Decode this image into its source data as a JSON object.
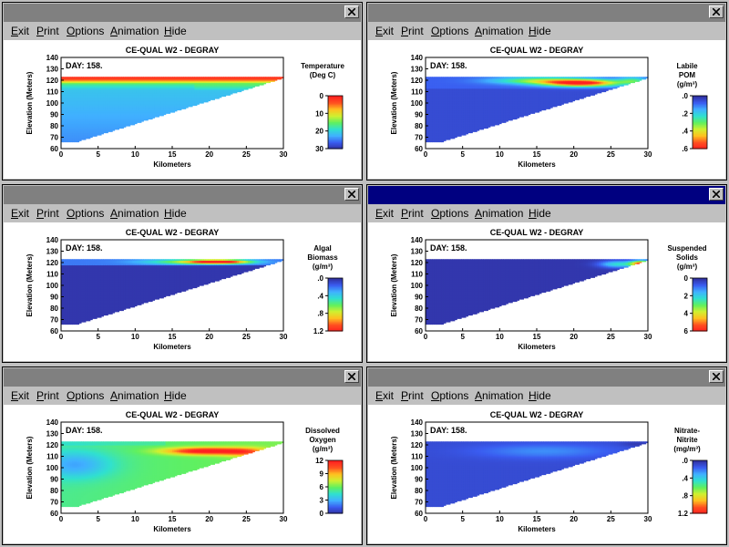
{
  "menu": {
    "exit": "Exit",
    "print": "Print",
    "options": "Options",
    "animation": "Animation",
    "hide": "Hide"
  },
  "colors": {
    "scale": [
      "#3030a0",
      "#3a5cf0",
      "#40b0ff",
      "#30e0d0",
      "#60f060",
      "#d0f030",
      "#ffc020",
      "#ff5020",
      "#ff2020"
    ]
  },
  "chart_data": [
    {
      "type": "heatmap",
      "title": "CE-QUAL W2 - DEGRAY",
      "day_label": "DAY: 158.",
      "xlabel": "Kilometers",
      "ylabel": "Elevation (Meters)",
      "xlim": [
        0,
        30
      ],
      "ylim": [
        60,
        140
      ],
      "x_ticks": [
        "0",
        "5",
        "10",
        "15",
        "20",
        "25",
        "30"
      ],
      "y_ticks": [
        "60",
        "70",
        "80",
        "90",
        "100",
        "110",
        "120",
        "130",
        "140"
      ],
      "legend_title": [
        "Temperature",
        "(Deg C)"
      ],
      "legend_ticks": [
        "0",
        "10",
        "20",
        "30"
      ],
      "legend_range": [
        0,
        30
      ],
      "legend_reversed": true,
      "water_surface": 123,
      "pattern": "temp"
    },
    {
      "type": "heatmap",
      "title": "CE-QUAL W2 - DEGRAY",
      "day_label": "DAY: 158.",
      "xlabel": "Kilometers",
      "ylabel": "Elevation (Meters)",
      "xlim": [
        0,
        30
      ],
      "ylim": [
        60,
        140
      ],
      "x_ticks": [
        "0",
        "5",
        "10",
        "15",
        "20",
        "25",
        "30"
      ],
      "y_ticks": [
        "60",
        "70",
        "80",
        "90",
        "100",
        "110",
        "120",
        "130",
        "140"
      ],
      "legend_title": [
        "Labile",
        "POM",
        "(g/m³)"
      ],
      "legend_ticks": [
        ".0",
        ".2",
        ".4",
        ".6"
      ],
      "legend_range": [
        0,
        0.6
      ],
      "legend_reversed": false,
      "water_surface": 123,
      "pattern": "pom"
    },
    {
      "type": "heatmap",
      "title": "CE-QUAL W2 - DEGRAY",
      "day_label": "DAY: 158.",
      "xlabel": "Kilometers",
      "ylabel": "Elevation (Meters)",
      "xlim": [
        0,
        30
      ],
      "ylim": [
        60,
        140
      ],
      "x_ticks": [
        "0",
        "5",
        "10",
        "15",
        "20",
        "25",
        "30"
      ],
      "y_ticks": [
        "60",
        "70",
        "80",
        "90",
        "100",
        "110",
        "120",
        "130",
        "140"
      ],
      "legend_title": [
        "Algal",
        "Biomass",
        "(g/m³)"
      ],
      "legend_ticks": [
        ".0",
        ".4",
        ".8",
        "1.2"
      ],
      "legend_range": [
        0,
        1.2
      ],
      "legend_reversed": false,
      "water_surface": 123,
      "pattern": "algae"
    },
    {
      "type": "heatmap",
      "title": "CE-QUAL W2 - DEGRAY",
      "day_label": "DAY: 158.",
      "xlabel": "Kilometers",
      "ylabel": "Elevation (Meters)",
      "xlim": [
        0,
        30
      ],
      "ylim": [
        60,
        140
      ],
      "x_ticks": [
        "0",
        "5",
        "10",
        "15",
        "20",
        "25",
        "30"
      ],
      "y_ticks": [
        "60",
        "70",
        "80",
        "90",
        "100",
        "110",
        "120",
        "130",
        "140"
      ],
      "legend_title": [
        "Suspended",
        "Solids",
        "(g/m³)"
      ],
      "legend_ticks": [
        "0",
        "2",
        "4",
        "6"
      ],
      "legend_range": [
        0,
        6
      ],
      "legend_reversed": false,
      "water_surface": 123,
      "pattern": "ss"
    },
    {
      "type": "heatmap",
      "title": "CE-QUAL W2 - DEGRAY",
      "day_label": "DAY: 158.",
      "xlabel": "Kilometers",
      "ylabel": "Elevation (Meters)",
      "xlim": [
        0,
        30
      ],
      "ylim": [
        60,
        140
      ],
      "x_ticks": [
        "0",
        "5",
        "10",
        "15",
        "20",
        "25",
        "30"
      ],
      "y_ticks": [
        "60",
        "70",
        "80",
        "90",
        "100",
        "110",
        "120",
        "130",
        "140"
      ],
      "legend_title": [
        "Dissolved",
        "Oxygen",
        "(g/m³)"
      ],
      "legend_ticks": [
        "12",
        "9",
        "6",
        "3",
        "0"
      ],
      "legend_range": [
        0,
        12
      ],
      "legend_reversed": true,
      "water_surface": 123,
      "pattern": "do"
    },
    {
      "type": "heatmap",
      "title": "CE-QUAL W2 - DEGRAY",
      "day_label": "DAY: 158.",
      "xlabel": "Kilometers",
      "ylabel": "Elevation (Meters)",
      "xlim": [
        0,
        30
      ],
      "ylim": [
        60,
        140
      ],
      "x_ticks": [
        "0",
        "5",
        "10",
        "15",
        "20",
        "25",
        "30"
      ],
      "y_ticks": [
        "60",
        "70",
        "80",
        "90",
        "100",
        "110",
        "120",
        "130",
        "140"
      ],
      "legend_title": [
        "Nitrate-",
        "Nitrite",
        "(mg/m³)"
      ],
      "legend_ticks": [
        ".0",
        ".4",
        ".8",
        "1.2"
      ],
      "legend_range": [
        0,
        1.2
      ],
      "legend_reversed": false,
      "water_surface": 123,
      "pattern": "no3"
    }
  ]
}
